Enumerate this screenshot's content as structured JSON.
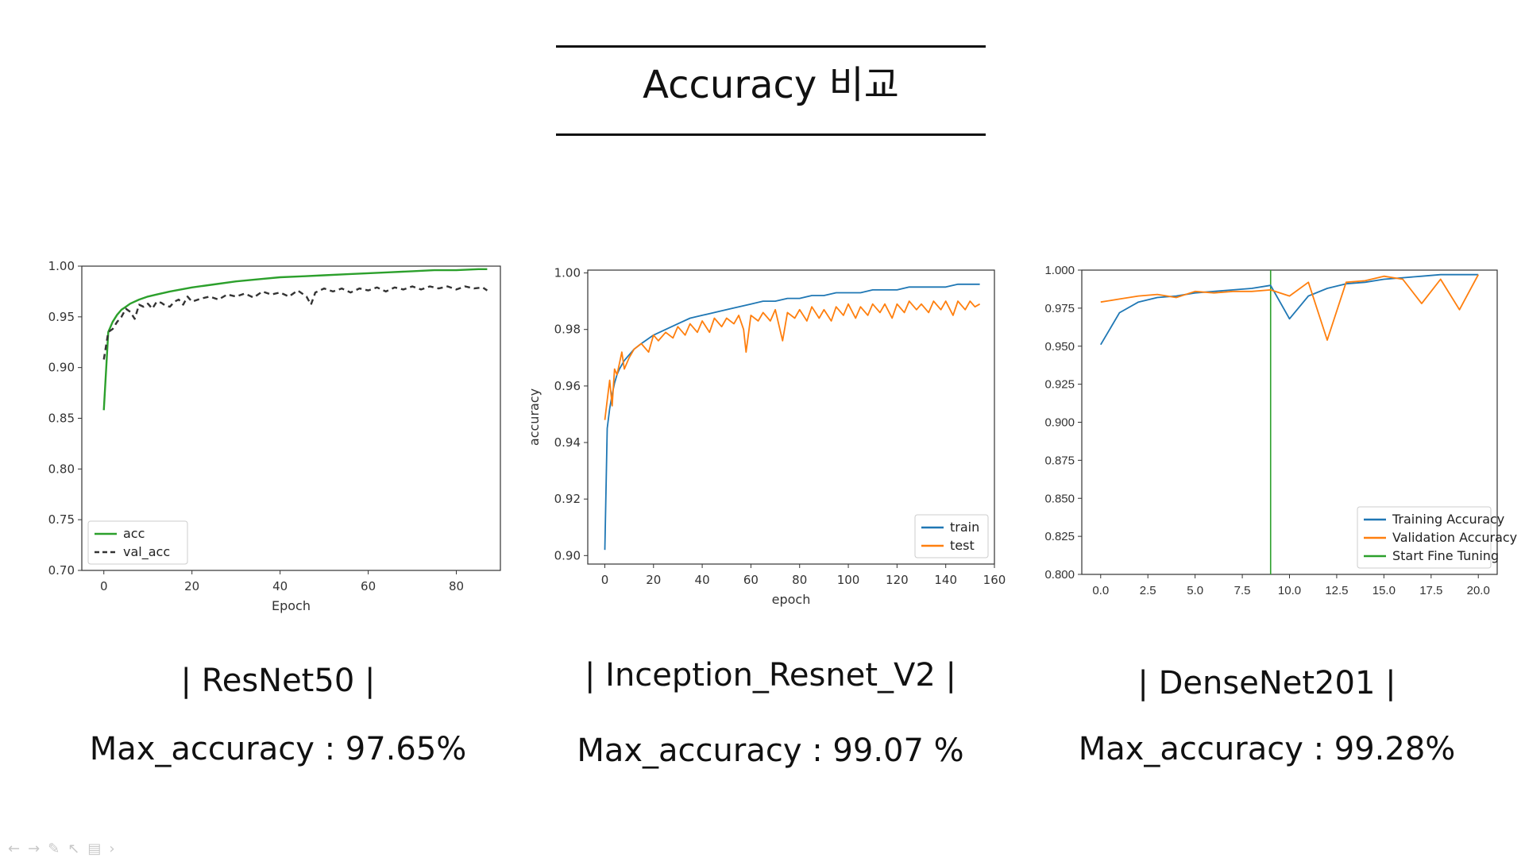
{
  "slide": {
    "title": "Accuracy 비교",
    "models": [
      {
        "name": "|  ResNet50 |",
        "max_accuracy": "Max_accuracy : 97.65%"
      },
      {
        "name": "|  Inception_Resnet_V2  |",
        "max_accuracy": "Max_accuracy : 99.07 %"
      },
      {
        "name": "| DenseNet201 |",
        "max_accuracy": "Max_accuracy : 99.28%"
      }
    ]
  },
  "toolbar_icons": [
    "arrow-left-icon",
    "arrow-right-icon",
    "pen-icon",
    "pointer-icon",
    "page-icon",
    "chevron-right-icon"
  ],
  "chart_data": [
    {
      "type": "line",
      "title": "",
      "xlabel": "Epoch",
      "ylabel": "",
      "xlim": [
        -5,
        90
      ],
      "ylim": [
        0.7,
        1.0
      ],
      "xticks": [
        0,
        20,
        40,
        60,
        80
      ],
      "yticks": [
        "0.70",
        "0.75",
        "0.80",
        "0.85",
        "0.90",
        "0.95",
        "1.00"
      ],
      "legend_position": "lower-left",
      "grid": false,
      "series": [
        {
          "name": "acc",
          "color": "#2ca02c",
          "style": "solid",
          "x": [
            0,
            1,
            2,
            3,
            4,
            5,
            6,
            8,
            10,
            12,
            15,
            20,
            25,
            30,
            35,
            40,
            45,
            50,
            55,
            60,
            65,
            70,
            75,
            80,
            85,
            87
          ],
          "y": [
            0.858,
            0.935,
            0.945,
            0.952,
            0.957,
            0.96,
            0.963,
            0.967,
            0.97,
            0.972,
            0.975,
            0.979,
            0.982,
            0.985,
            0.987,
            0.989,
            0.99,
            0.991,
            0.992,
            0.993,
            0.994,
            0.995,
            0.996,
            0.996,
            0.997,
            0.997
          ]
        },
        {
          "name": "val_acc",
          "color": "#333333",
          "style": "dashed",
          "x": [
            0,
            1,
            2,
            3,
            4,
            5,
            6,
            7,
            8,
            9,
            10,
            11,
            12,
            13,
            14,
            15,
            16,
            17,
            18,
            19,
            20,
            22,
            24,
            26,
            28,
            30,
            32,
            34,
            36,
            38,
            40,
            42,
            44,
            46,
            47,
            48,
            50,
            52,
            54,
            56,
            58,
            60,
            62,
            64,
            66,
            68,
            70,
            72,
            74,
            76,
            78,
            80,
            82,
            84,
            86,
            87
          ],
          "y": [
            0.908,
            0.935,
            0.938,
            0.945,
            0.95,
            0.958,
            0.955,
            0.948,
            0.962,
            0.96,
            0.963,
            0.958,
            0.965,
            0.964,
            0.961,
            0.96,
            0.965,
            0.967,
            0.962,
            0.97,
            0.965,
            0.968,
            0.97,
            0.967,
            0.972,
            0.97,
            0.973,
            0.969,
            0.975,
            0.972,
            0.974,
            0.97,
            0.976,
            0.97,
            0.962,
            0.974,
            0.978,
            0.975,
            0.978,
            0.974,
            0.978,
            0.976,
            0.979,
            0.975,
            0.979,
            0.977,
            0.98,
            0.977,
            0.98,
            0.978,
            0.98,
            0.977,
            0.98,
            0.978,
            0.979,
            0.976
          ]
        }
      ]
    },
    {
      "type": "line",
      "title": "",
      "xlabel": "epoch",
      "ylabel": "accuracy",
      "xlim": [
        -7,
        160
      ],
      "ylim": [
        0.897,
        1.001
      ],
      "xticks": [
        0,
        20,
        40,
        60,
        80,
        100,
        120,
        140,
        160
      ],
      "yticks": [
        "0.90",
        "0.92",
        "0.94",
        "0.96",
        "0.98",
        "1.00"
      ],
      "legend_position": "lower-right",
      "grid": false,
      "series": [
        {
          "name": "train",
          "color": "#1f77b4",
          "style": "solid",
          "x": [
            0,
            1,
            2,
            3,
            4,
            5,
            6,
            8,
            10,
            12,
            15,
            20,
            25,
            30,
            35,
            40,
            45,
            50,
            55,
            60,
            65,
            70,
            75,
            80,
            85,
            90,
            95,
            100,
            105,
            110,
            115,
            120,
            125,
            130,
            135,
            140,
            145,
            150,
            154
          ],
          "y": [
            0.902,
            0.945,
            0.952,
            0.957,
            0.961,
            0.964,
            0.966,
            0.969,
            0.971,
            0.973,
            0.975,
            0.978,
            0.98,
            0.982,
            0.984,
            0.985,
            0.986,
            0.987,
            0.988,
            0.989,
            0.99,
            0.99,
            0.991,
            0.991,
            0.992,
            0.992,
            0.993,
            0.993,
            0.993,
            0.994,
            0.994,
            0.994,
            0.995,
            0.995,
            0.995,
            0.995,
            0.996,
            0.996,
            0.996
          ]
        },
        {
          "name": "test",
          "color": "#ff7f0e",
          "style": "solid",
          "x": [
            0,
            1,
            2,
            3,
            4,
            5,
            6,
            7,
            8,
            10,
            12,
            15,
            18,
            20,
            22,
            25,
            28,
            30,
            33,
            35,
            38,
            40,
            43,
            45,
            48,
            50,
            53,
            55,
            57,
            58,
            60,
            63,
            65,
            68,
            70,
            73,
            75,
            78,
            80,
            83,
            85,
            88,
            90,
            93,
            95,
            98,
            100,
            103,
            105,
            108,
            110,
            113,
            115,
            118,
            120,
            123,
            125,
            128,
            130,
            133,
            135,
            138,
            140,
            143,
            145,
            148,
            150,
            152,
            154
          ],
          "y": [
            0.948,
            0.955,
            0.962,
            0.953,
            0.966,
            0.964,
            0.968,
            0.972,
            0.966,
            0.97,
            0.973,
            0.975,
            0.972,
            0.978,
            0.976,
            0.979,
            0.977,
            0.981,
            0.978,
            0.982,
            0.979,
            0.983,
            0.979,
            0.984,
            0.981,
            0.984,
            0.982,
            0.985,
            0.98,
            0.972,
            0.985,
            0.983,
            0.986,
            0.983,
            0.987,
            0.976,
            0.986,
            0.984,
            0.987,
            0.983,
            0.988,
            0.984,
            0.987,
            0.983,
            0.988,
            0.985,
            0.989,
            0.984,
            0.988,
            0.985,
            0.989,
            0.986,
            0.989,
            0.984,
            0.989,
            0.986,
            0.99,
            0.987,
            0.989,
            0.986,
            0.99,
            0.987,
            0.99,
            0.985,
            0.99,
            0.987,
            0.99,
            0.988,
            0.989
          ]
        }
      ]
    },
    {
      "type": "line",
      "title": "",
      "xlabel": "",
      "ylabel": "",
      "xlim": [
        -1,
        21
      ],
      "ylim": [
        0.8,
        1.0
      ],
      "xticks": [
        "0.0",
        "2.5",
        "5.0",
        "7.5",
        "10.0",
        "12.5",
        "15.0",
        "17.5",
        "20.0"
      ],
      "yticks": [
        "0.800",
        "0.825",
        "0.850",
        "0.875",
        "0.900",
        "0.925",
        "0.950",
        "0.975",
        "1.000"
      ],
      "legend_position": "lower-right",
      "grid": false,
      "vline": {
        "x": 9,
        "label": "Start Fine Tuning",
        "color": "#2ca02c"
      },
      "series": [
        {
          "name": "Training Accuracy",
          "color": "#1f77b4",
          "style": "solid",
          "x": [
            0,
            1,
            2,
            3,
            4,
            5,
            6,
            7,
            8,
            9,
            10,
            11,
            12,
            13,
            14,
            15,
            16,
            17,
            18,
            19,
            20
          ],
          "y": [
            0.951,
            0.972,
            0.979,
            0.982,
            0.983,
            0.985,
            0.986,
            0.987,
            0.988,
            0.99,
            0.968,
            0.983,
            0.988,
            0.991,
            0.992,
            0.994,
            0.995,
            0.996,
            0.997,
            0.997,
            0.997
          ]
        },
        {
          "name": "Validation Accuracy",
          "color": "#ff7f0e",
          "style": "solid",
          "x": [
            0,
            1,
            2,
            3,
            4,
            5,
            6,
            7,
            8,
            9,
            10,
            11,
            12,
            13,
            14,
            15,
            16,
            17,
            18,
            19,
            20
          ],
          "y": [
            0.979,
            0.981,
            0.983,
            0.984,
            0.982,
            0.986,
            0.985,
            0.986,
            0.986,
            0.987,
            0.983,
            0.992,
            0.954,
            0.992,
            0.993,
            0.996,
            0.994,
            0.978,
            0.994,
            0.974,
            0.997
          ]
        }
      ]
    }
  ]
}
